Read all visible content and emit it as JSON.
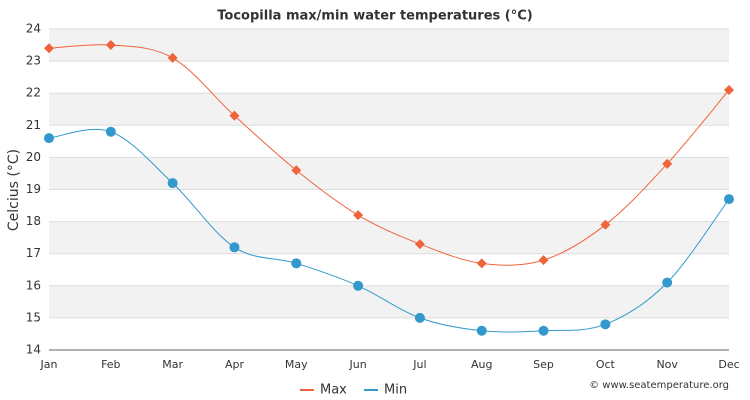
{
  "chart_data": {
    "type": "line",
    "title": "Tocopilla max/min water temperatures (°C)",
    "y_label": "Celcius (°C)",
    "credit": "© www.seatemperature.org",
    "categories": [
      "Jan",
      "Feb",
      "Mar",
      "Apr",
      "May",
      "Jun",
      "Jul",
      "Aug",
      "Sep",
      "Oct",
      "Nov",
      "Dec"
    ],
    "series": [
      {
        "name": "Max",
        "color": "#f0643c",
        "marker": "diamond",
        "values": [
          23.4,
          23.5,
          23.1,
          21.3,
          19.6,
          18.2,
          17.3,
          16.7,
          16.8,
          17.9,
          19.8,
          22.1
        ]
      },
      {
        "name": "Min",
        "color": "#3399cc",
        "marker": "circle",
        "values": [
          20.6,
          20.8,
          19.2,
          17.2,
          16.7,
          16.0,
          15.0,
          14.6,
          14.6,
          14.8,
          16.1,
          18.7
        ]
      }
    ],
    "ylim": [
      14,
      24
    ],
    "yticks": [
      14,
      15,
      16,
      17,
      18,
      19,
      20,
      21,
      22,
      23,
      24
    ],
    "grid": true,
    "legend": "bottom"
  }
}
